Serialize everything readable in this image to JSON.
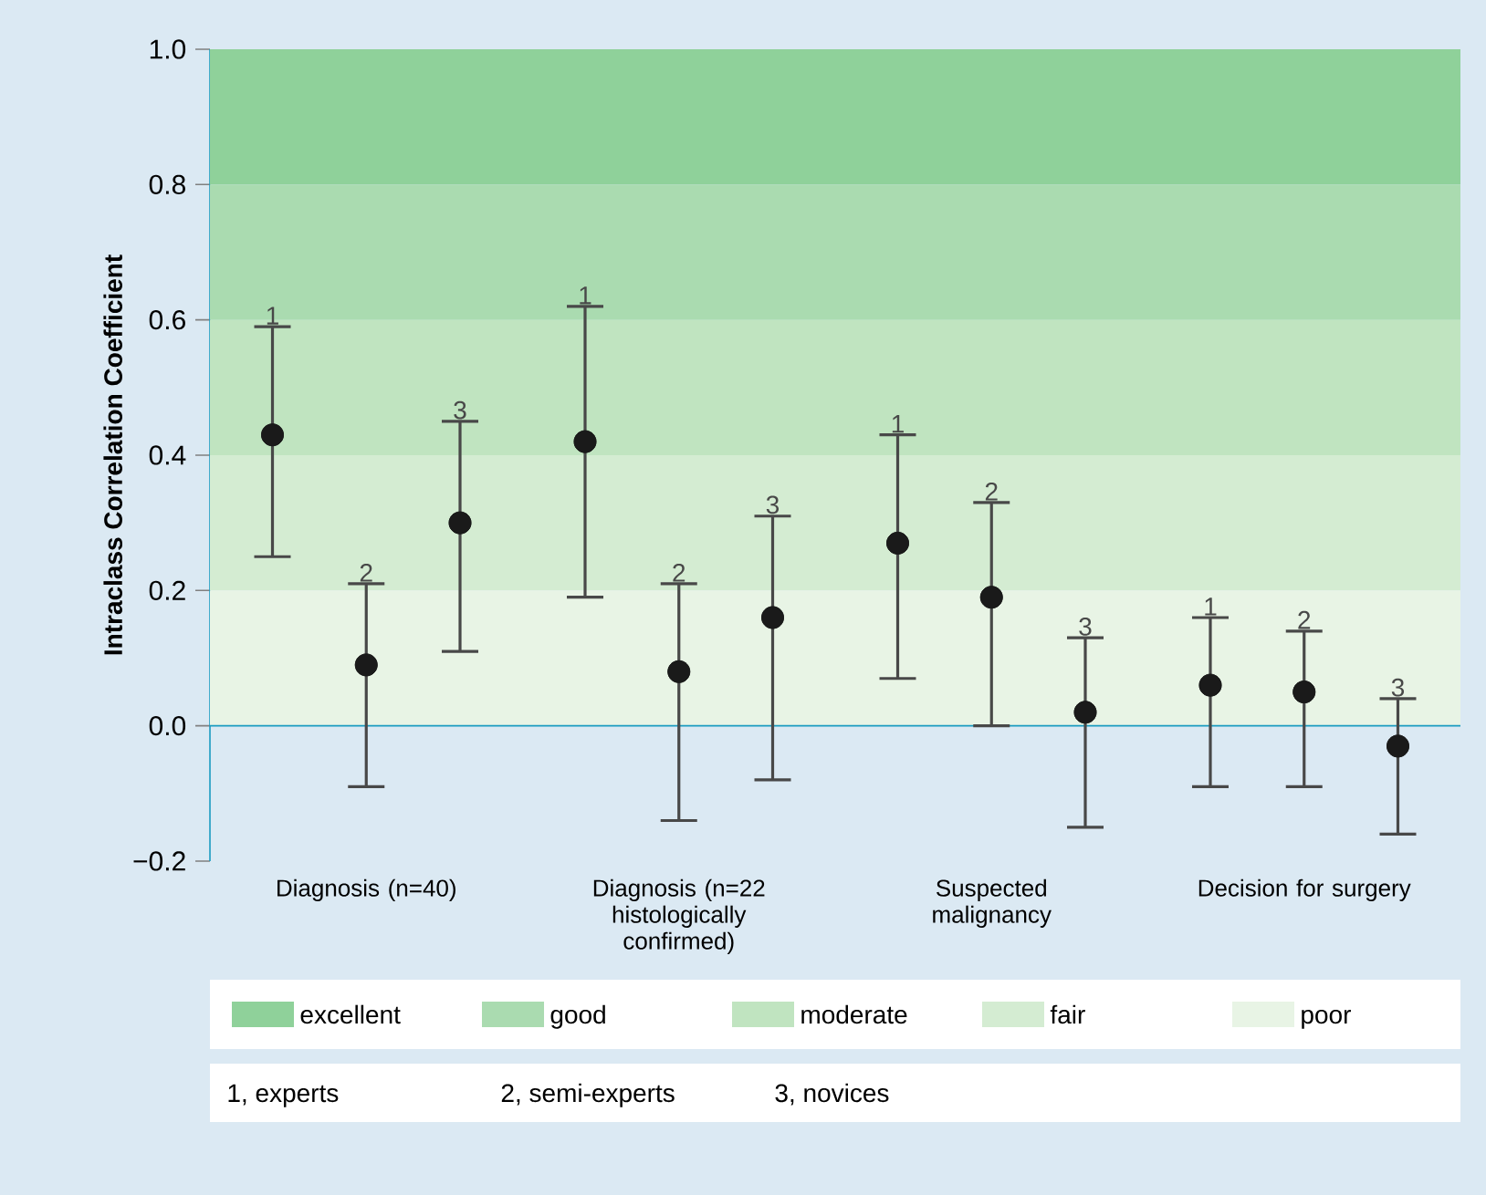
{
  "chart_data": {
    "type": "scatter",
    "ylabel": "Intraclass Correlation Coefficient",
    "categories": [
      "Diagnosis (n=40)",
      "Diagnosis (n=22 histologically confirmed)",
      "Suspected malignancy",
      "Decision for surgery"
    ],
    "series": [
      {
        "name": "1",
        "color": "#1a1a1a",
        "values": [
          0.43,
          0.42,
          0.27,
          0.06
        ],
        "errors": [
          [
            0.25,
            0.59
          ],
          [
            0.19,
            0.62
          ],
          [
            0.07,
            0.43
          ],
          [
            -0.09,
            0.16
          ]
        ]
      },
      {
        "name": "2",
        "color": "#1a1a1a",
        "values": [
          0.09,
          0.08,
          0.19,
          0.05
        ],
        "errors": [
          [
            -0.09,
            0.21
          ],
          [
            -0.14,
            0.21
          ],
          [
            0.0,
            0.33
          ],
          [
            -0.09,
            0.14
          ]
        ]
      },
      {
        "name": "3",
        "color": "#1a1a1a",
        "values": [
          0.3,
          0.16,
          0.02,
          -0.03
        ],
        "errors": [
          [
            0.11,
            0.45
          ],
          [
            -0.08,
            0.31
          ],
          [
            -0.15,
            0.13
          ],
          [
            -0.16,
            0.04
          ]
        ]
      }
    ],
    "ylim": [
      -0.2,
      1.0
    ],
    "yticks": [
      {
        "value": -0.2,
        "label": "−0.2"
      },
      {
        "value": 0,
        "label": "0.0"
      },
      {
        "value": 0.2,
        "label": "0.2"
      },
      {
        "value": 0.4,
        "label": "0.4"
      },
      {
        "value": 0.6,
        "label": "0.6"
      },
      {
        "value": 0.8,
        "label": "0.8"
      },
      {
        "value": 1.0,
        "label": "1.0"
      }
    ],
    "bands": [
      {
        "axis": "y",
        "from": 0.8,
        "to": 1.0,
        "label": "excellent",
        "color": "#8fd19a"
      },
      {
        "axis": "y",
        "from": 0.6,
        "to": 0.8,
        "label": "good",
        "color": "#aadbb0"
      },
      {
        "axis": "y",
        "from": 0.4,
        "to": 0.6,
        "label": "moderate",
        "color": "#c0e4c0"
      },
      {
        "axis": "y",
        "from": 0.2,
        "to": 0.4,
        "label": "fair",
        "color": "#d4ecd2"
      },
      {
        "axis": "y",
        "from": 0.0,
        "to": 0.2,
        "label": "poor",
        "color": "#e8f4e5"
      }
    ],
    "ref_lines": [
      {
        "axis": "y",
        "value": 0,
        "color": "#1a9bc0"
      }
    ],
    "marker": "circle",
    "legend": "bottom",
    "annotations": [
      "1, experts",
      "2, semi-experts",
      "3, novices"
    ]
  }
}
